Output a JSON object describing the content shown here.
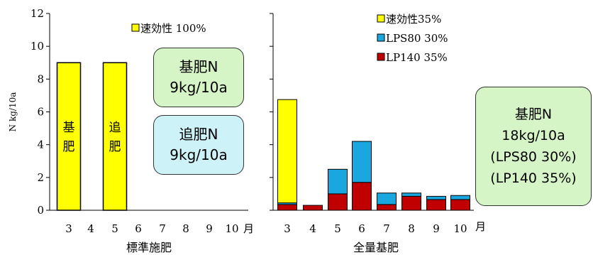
{
  "colors": {
    "yellow": "#ffff00",
    "blue": "#1aa7e0",
    "red": "#c00000",
    "box_green": "#d6f5c6",
    "box_cyan": "#cdf3f8"
  },
  "chart_data": [
    {
      "type": "bar",
      "xlabel": "標準施肥",
      "ylabel": "N kg/10a",
      "ylim": [
        0,
        12
      ],
      "yticks": [
        "0",
        "2",
        "4",
        "6",
        "8",
        "10",
        "12"
      ],
      "categories": [
        "3",
        "4",
        "5",
        "6",
        "7",
        "8",
        "9",
        "10"
      ],
      "month_unit": "月",
      "series": [
        {
          "name": "速効性 100%",
          "values": [
            9,
            0,
            9,
            0,
            0,
            0,
            0,
            0
          ]
        }
      ],
      "bar_labels": [
        "基肥",
        "追肥"
      ],
      "legend": "top"
    },
    {
      "type": "bar",
      "stacked": true,
      "xlabel": "全量基肥",
      "ylim": [
        0,
        12
      ],
      "categories": [
        "3",
        "4",
        "5",
        "6",
        "7",
        "8",
        "9",
        "10"
      ],
      "month_unit": "月",
      "series": [
        {
          "name": "LP140 35%",
          "values": [
            0.35,
            0.3,
            1.0,
            1.7,
            0.35,
            0.85,
            0.65,
            0.65
          ]
        },
        {
          "name": "LPS80 30%",
          "values": [
            0.1,
            0,
            1.5,
            2.5,
            0.7,
            0.2,
            0.2,
            0.25
          ]
        },
        {
          "name": "速効性35%",
          "values": [
            6.3,
            0,
            0,
            0,
            0,
            0,
            0,
            0
          ]
        }
      ],
      "legend": "top-left"
    }
  ],
  "annotations": {
    "box1": [
      "基肥N",
      "9kg/10a"
    ],
    "box2": [
      "追肥N",
      "9kg/10a"
    ],
    "box3": [
      "基肥N",
      "18kg/10a",
      "(LPS80 30%)",
      "(LP140 35%)"
    ]
  }
}
